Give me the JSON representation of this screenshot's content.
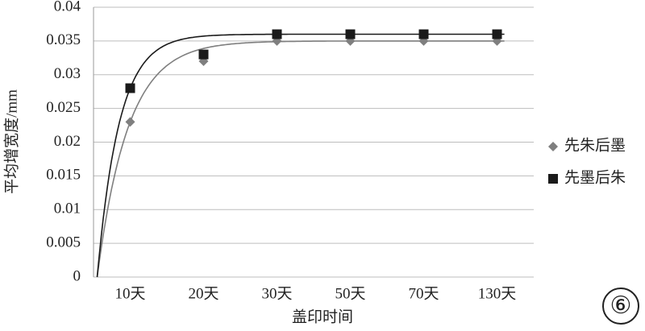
{
  "chart_data": {
    "type": "scatter",
    "categories": [
      "10天",
      "20天",
      "30天",
      "50天",
      "70天",
      "130天"
    ],
    "series": [
      {
        "name": "先朱后墨",
        "color": "#7f7f7f",
        "marker": "diamond",
        "values": [
          0.023,
          0.032,
          0.035,
          0.035,
          0.035,
          0.035
        ]
      },
      {
        "name": "先墨后朱",
        "color": "#1a1a1a",
        "marker": "square",
        "values": [
          0.028,
          0.033,
          0.036,
          0.036,
          0.036,
          0.036
        ]
      }
    ],
    "ylim": [
      0,
      0.04
    ],
    "yticks": [
      0,
      0.005,
      0.01,
      0.015,
      0.02,
      0.025,
      0.03,
      0.035,
      0.04
    ],
    "y_label": "平均增宽度/mm",
    "x_label": "盖印时间",
    "grid": true,
    "trendline": true,
    "legend": "right",
    "annotation": "⑥"
  }
}
